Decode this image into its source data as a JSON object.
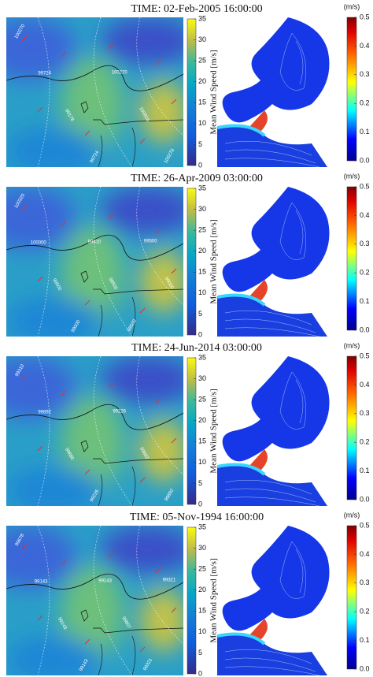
{
  "panels": [
    {
      "title": "TIME: 02-Feb-2005 16:00:00",
      "wind_colorbar": {
        "label": "Mean Wind Speed [m/s]",
        "clim": [
          0,
          35
        ],
        "ticks": [
          0,
          5,
          10,
          15,
          20,
          25,
          30,
          35
        ]
      },
      "current_colorbar": {
        "unit": "(m/s)",
        "clim": [
          0,
          0.5
        ],
        "ticks": [
          {
            "value": 0,
            "label": "0.0"
          },
          0.1,
          0.2,
          0.3,
          0.4,
          0.5
        ]
      },
      "contour_labels": [
        "100270",
        "99724",
        "99178",
        "99724",
        "100270",
        "100816",
        "100270"
      ]
    },
    {
      "title": "TIME: 26-Apr-2009 03:00:00",
      "wind_colorbar": {
        "label": "Mean Wind Speed [m/s]",
        "clim": [
          0,
          35
        ],
        "ticks": [
          0,
          5,
          10,
          15,
          20,
          25,
          30,
          35
        ]
      },
      "current_colorbar": {
        "unit": "(m/s)",
        "clim": [
          0,
          0.5
        ],
        "ticks": [
          {
            "value": 0,
            "label": "0.0"
          },
          0.1,
          0.2,
          0.3,
          0.4,
          0.5
        ]
      },
      "contour_labels": [
        "100320",
        "100000",
        "99500",
        "99000",
        "99410",
        "98500",
        "98500",
        "99500",
        "99000"
      ]
    },
    {
      "title": "TIME: 24-Jun-2014 03:00:00",
      "wind_colorbar": {
        "label": "Mean Wind Speed [m/s]",
        "clim": [
          0,
          35
        ],
        "ticks": [
          0,
          5,
          10,
          15,
          20,
          25,
          30,
          35
        ]
      },
      "current_colorbar": {
        "unit": "(m/s)",
        "clim": [
          0,
          0.5
        ],
        "ticks": [
          {
            "value": 0,
            "label": "0.0"
          },
          0.1,
          0.2,
          0.3,
          0.4,
          0.5
        ]
      },
      "contour_labels": [
        "99310",
        "99892",
        "99680",
        "99226",
        "99226",
        "99892",
        "99892"
      ]
    },
    {
      "title": "TIME: 05-Nov-1994 16:00:00",
      "wind_colorbar": {
        "label": "Mean Wind Speed [m/s]",
        "clim": [
          0,
          35
        ],
        "ticks": [
          0,
          5,
          10,
          15,
          20,
          25,
          30,
          35
        ]
      },
      "current_colorbar": {
        "unit": "(m/s)",
        "clim": [
          0,
          0.5
        ],
        "ticks": [
          {
            "value": 0,
            "label": "0.0"
          },
          0.1,
          0.2,
          0.3,
          0.4,
          0.5
        ]
      },
      "contour_labels": [
        "99678",
        "99143",
        "99143",
        "99143",
        "99143",
        "99607",
        "99321",
        "99321"
      ]
    }
  ]
}
